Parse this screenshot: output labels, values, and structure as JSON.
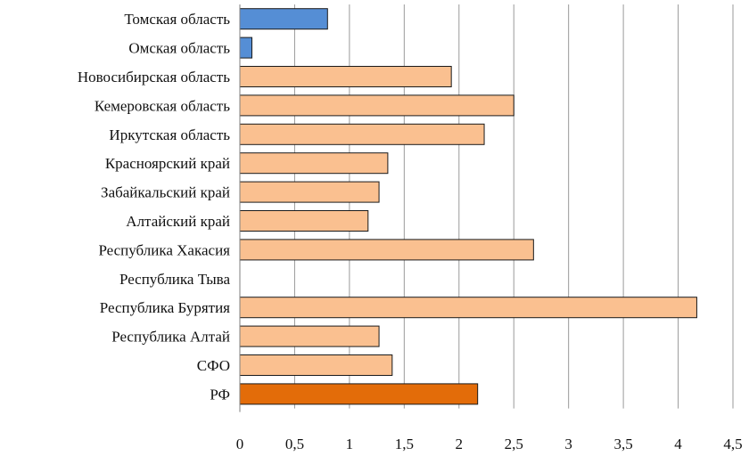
{
  "chart_data": {
    "type": "bar",
    "orientation": "horizontal",
    "title": "",
    "xlabel": "",
    "ylabel": "",
    "xlim": [
      0,
      4.5
    ],
    "grid": true,
    "legend": "none",
    "x_ticks": [
      "0",
      "0,5",
      "1",
      "1,5",
      "2",
      "2,5",
      "3",
      "3,5",
      "4",
      "4,5"
    ],
    "categories": [
      "Томская область",
      "Омская область",
      "Новосибирская область",
      "Кемеровская область",
      "Иркутская область",
      "Красноярский край",
      "Забайкальский край",
      "Алтайский край",
      "Республика Хакасия",
      "Республика Тыва",
      "Республика Бурятия",
      "Республика Алтай",
      "СФО",
      "РФ"
    ],
    "values": [
      0.8,
      0.11,
      1.93,
      2.5,
      2.23,
      1.35,
      1.27,
      1.17,
      2.68,
      0,
      4.17,
      1.27,
      1.39,
      2.17
    ],
    "colors": [
      "#558ed5",
      "#558ed5",
      "#fac090",
      "#fac090",
      "#fac090",
      "#fac090",
      "#fac090",
      "#fac090",
      "#fac090",
      "#fac090",
      "#fac090",
      "#fac090",
      "#fac090",
      "#e36c09"
    ]
  }
}
